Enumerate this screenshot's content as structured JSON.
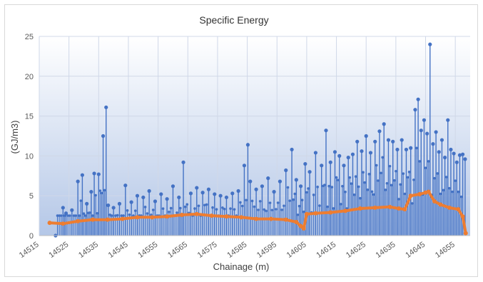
{
  "chart_data": {
    "type": "scatter",
    "title": "Specific Energy",
    "xlabel": "Chainage (m)",
    "ylabel": "(GJ/m3)",
    "xlim": [
      14515,
      14660
    ],
    "ylim": [
      0,
      25
    ],
    "x_ticks": [
      "14515",
      "14525",
      "14535",
      "14545",
      "14555",
      "14565",
      "14575",
      "14585",
      "14595",
      "14605",
      "14615",
      "14625",
      "14635",
      "14645",
      "14655"
    ],
    "y_ticks": [
      "0",
      "5",
      "10",
      "15",
      "20",
      "25"
    ],
    "grid": true,
    "legend": "none",
    "colors": {
      "spikes": "#4472C4",
      "trend": "#ED7D31"
    },
    "series": [
      {
        "style": "vertical-lines-with-markers",
        "color": "#4472C4",
        "x": [
          14520.5,
          14523,
          14524,
          14526,
          14528,
          14529.5,
          14531,
          14532.5,
          14533.5,
          14535,
          14536.5,
          14537.5,
          14538.2,
          14540,
          14542,
          14544,
          14546,
          14548,
          14550,
          14552,
          14554,
          14556,
          14558,
          14560,
          14562,
          14563.5,
          14566,
          14568,
          14570,
          14572,
          14574,
          14576,
          14578,
          14580,
          14582,
          14584,
          14585.2,
          14586,
          14588,
          14590,
          14592,
          14594,
          14596,
          14598,
          14600,
          14601.5,
          14603,
          14604.5,
          14606,
          14608,
          14610,
          14611.5,
          14613,
          14614.5,
          14616,
          14617.5,
          14619,
          14620.5,
          14622,
          14623.5,
          14625,
          14626.5,
          14628,
          14629.5,
          14631,
          14632.5,
          14634,
          14635.5,
          14637,
          14638.5,
          14640,
          14641.5,
          14642.5,
          14643.5,
          14644.5,
          14645.5,
          14646.5,
          14647.5,
          14648.5,
          14649.5,
          14650.5,
          14651.5,
          14652.5,
          14653.5,
          14654.5,
          14655.5,
          14656.5,
          14657.5,
          14658.3
        ],
        "y": [
          0,
          3.5,
          2.8,
          3.2,
          6.8,
          7.6,
          4,
          5.5,
          7.8,
          7.7,
          12.5,
          16.1,
          3.8,
          3.5,
          4,
          6.3,
          4.2,
          5,
          4.8,
          5.6,
          4.3,
          5.2,
          4.6,
          6.2,
          4.8,
          9.2,
          5.3,
          6,
          5.4,
          5.8,
          5.2,
          5,
          4.8,
          5.3,
          5.6,
          8.8,
          11.4,
          6.8,
          5.8,
          6.2,
          7.2,
          5.5,
          6.8,
          8.2,
          10.8,
          7,
          6.2,
          9,
          8,
          10.4,
          8.8,
          13.2,
          9.2,
          10.5,
          10,
          8.8,
          9.8,
          10.2,
          11.8,
          10.6,
          12.5,
          10.4,
          11.8,
          13.1,
          14,
          12,
          11.8,
          10.8,
          12,
          10.8,
          11,
          15.8,
          17.1,
          13.2,
          14.5,
          12.8,
          24,
          11.5,
          13,
          10.5,
          12,
          9.8,
          14.5,
          10.8,
          10.3,
          9.2,
          10.1,
          10.2,
          9.6
        ]
      },
      {
        "style": "thick-line-with-markers",
        "color": "#ED7D31",
        "x": [
          14518.5,
          14523,
          14528,
          14533,
          14538,
          14543,
          14548,
          14553,
          14558,
          14563,
          14568,
          14573,
          14578,
          14583,
          14588,
          14593,
          14598,
          14601.5,
          14603,
          14604,
          14605,
          14608,
          14613,
          14618,
          14623,
          14628,
          14633,
          14636,
          14638,
          14640,
          14643,
          14645,
          14646,
          14648,
          14650,
          14653,
          14656,
          14657.5,
          14658.5
        ],
        "y": [
          1.6,
          1.5,
          1.8,
          2,
          2,
          2.1,
          2.3,
          2.3,
          2.4,
          2.6,
          2.7,
          2.5,
          2.4,
          2.3,
          2.1,
          2.1,
          2,
          1.7,
          1.2,
          0.9,
          2.7,
          2.8,
          2.9,
          3.1,
          3.4,
          3.5,
          3.6,
          3.4,
          3.3,
          5,
          5.2,
          5.4,
          5.5,
          4.3,
          3.9,
          3.5,
          3.3,
          2.4,
          0.3
        ]
      }
    ]
  }
}
